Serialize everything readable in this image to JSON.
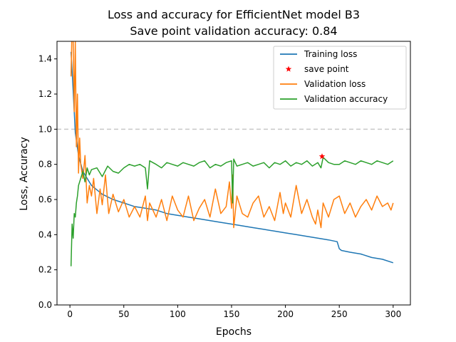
{
  "chart_data": {
    "type": "line",
    "title_line1": "Loss and accuracy for EfficientNet model B3",
    "title_line2": "Save point validation accuracy: 0.84",
    "xlabel": "Epochs",
    "ylabel": "Loss, Accuracy",
    "xlim": [
      -12,
      316
    ],
    "ylim": [
      0.0,
      1.5
    ],
    "xticks": [
      0,
      50,
      100,
      150,
      200,
      250,
      300
    ],
    "yticks": [
      0.0,
      0.2,
      0.4,
      0.6,
      0.8,
      1.0,
      1.2,
      1.4
    ],
    "reference_line": {
      "y": 1.0,
      "style": "dashed",
      "color": "#c8c8c8"
    },
    "legend_position": "top-right",
    "series": [
      {
        "name": "Training loss",
        "color": "#1f77b4",
        "x": [
          1,
          3,
          5,
          8,
          12,
          20,
          30,
          40,
          50,
          60,
          70,
          80,
          90,
          100,
          110,
          120,
          130,
          140,
          150,
          160,
          170,
          180,
          190,
          200,
          210,
          220,
          230,
          240,
          248,
          250,
          252,
          260,
          270,
          280,
          290,
          300
        ],
        "y": [
          1.44,
          1.22,
          0.98,
          0.85,
          0.76,
          0.68,
          0.63,
          0.6,
          0.58,
          0.56,
          0.55,
          0.54,
          0.52,
          0.51,
          0.5,
          0.49,
          0.48,
          0.47,
          0.46,
          0.45,
          0.44,
          0.43,
          0.42,
          0.41,
          0.4,
          0.39,
          0.38,
          0.37,
          0.36,
          0.32,
          0.31,
          0.3,
          0.29,
          0.27,
          0.26,
          0.24
        ]
      },
      {
        "name": "Validation loss",
        "color": "#ff7f0e",
        "x": [
          1,
          2,
          3,
          4,
          5,
          6,
          7,
          8,
          9,
          10,
          12,
          14,
          16,
          18,
          20,
          22,
          25,
          28,
          30,
          33,
          36,
          40,
          45,
          50,
          55,
          60,
          65,
          70,
          72,
          74,
          80,
          85,
          90,
          95,
          100,
          105,
          110,
          115,
          120,
          125,
          130,
          135,
          140,
          145,
          148,
          150,
          151,
          152,
          155,
          160,
          165,
          170,
          175,
          180,
          185,
          190,
          195,
          198,
          200,
          205,
          210,
          215,
          220,
          225,
          228,
          230,
          233,
          235,
          240,
          245,
          250,
          255,
          260,
          265,
          270,
          275,
          280,
          285,
          290,
          295,
          298,
          300
        ],
        "y": [
          1.3,
          1.6,
          1.5,
          1.1,
          1.5,
          0.9,
          1.2,
          0.75,
          0.95,
          0.8,
          0.72,
          0.85,
          0.58,
          0.68,
          0.62,
          0.72,
          0.52,
          0.66,
          0.57,
          0.74,
          0.52,
          0.63,
          0.53,
          0.6,
          0.5,
          0.56,
          0.5,
          0.62,
          0.48,
          0.58,
          0.5,
          0.6,
          0.48,
          0.62,
          0.54,
          0.5,
          0.62,
          0.48,
          0.55,
          0.6,
          0.5,
          0.66,
          0.52,
          0.56,
          0.7,
          0.55,
          0.74,
          0.44,
          0.62,
          0.52,
          0.5,
          0.58,
          0.62,
          0.5,
          0.56,
          0.48,
          0.64,
          0.52,
          0.58,
          0.5,
          0.68,
          0.52,
          0.6,
          0.5,
          0.46,
          0.54,
          0.44,
          0.58,
          0.5,
          0.6,
          0.62,
          0.52,
          0.58,
          0.5,
          0.56,
          0.6,
          0.54,
          0.62,
          0.56,
          0.58,
          0.54,
          0.58
        ]
      },
      {
        "name": "Validation accuracy",
        "color": "#2ca02c",
        "x": [
          1,
          2,
          3,
          4,
          5,
          6,
          7,
          8,
          10,
          12,
          14,
          16,
          18,
          20,
          25,
          30,
          35,
          40,
          45,
          50,
          55,
          60,
          65,
          70,
          72,
          74,
          80,
          85,
          90,
          95,
          100,
          105,
          110,
          115,
          120,
          125,
          130,
          135,
          140,
          145,
          150,
          151,
          152,
          155,
          160,
          165,
          170,
          175,
          180,
          185,
          190,
          195,
          200,
          205,
          210,
          215,
          220,
          225,
          230,
          233,
          235,
          240,
          245,
          250,
          255,
          260,
          265,
          270,
          275,
          280,
          285,
          290,
          295,
          300
        ],
        "y": [
          0.22,
          0.46,
          0.38,
          0.52,
          0.5,
          0.58,
          0.62,
          0.68,
          0.72,
          0.76,
          0.7,
          0.78,
          0.74,
          0.77,
          0.78,
          0.73,
          0.79,
          0.76,
          0.75,
          0.78,
          0.8,
          0.79,
          0.8,
          0.78,
          0.66,
          0.82,
          0.8,
          0.78,
          0.81,
          0.8,
          0.79,
          0.81,
          0.8,
          0.79,
          0.81,
          0.82,
          0.78,
          0.8,
          0.79,
          0.81,
          0.82,
          0.58,
          0.83,
          0.79,
          0.8,
          0.81,
          0.79,
          0.8,
          0.81,
          0.78,
          0.81,
          0.8,
          0.82,
          0.79,
          0.81,
          0.8,
          0.82,
          0.79,
          0.81,
          0.78,
          0.84,
          0.81,
          0.8,
          0.8,
          0.82,
          0.81,
          0.8,
          0.82,
          0.81,
          0.8,
          0.82,
          0.81,
          0.8,
          0.82
        ]
      }
    ],
    "save_point": {
      "name": "save point",
      "x": 234,
      "y": 0.845,
      "color": "#ff0000",
      "marker": "star"
    }
  }
}
